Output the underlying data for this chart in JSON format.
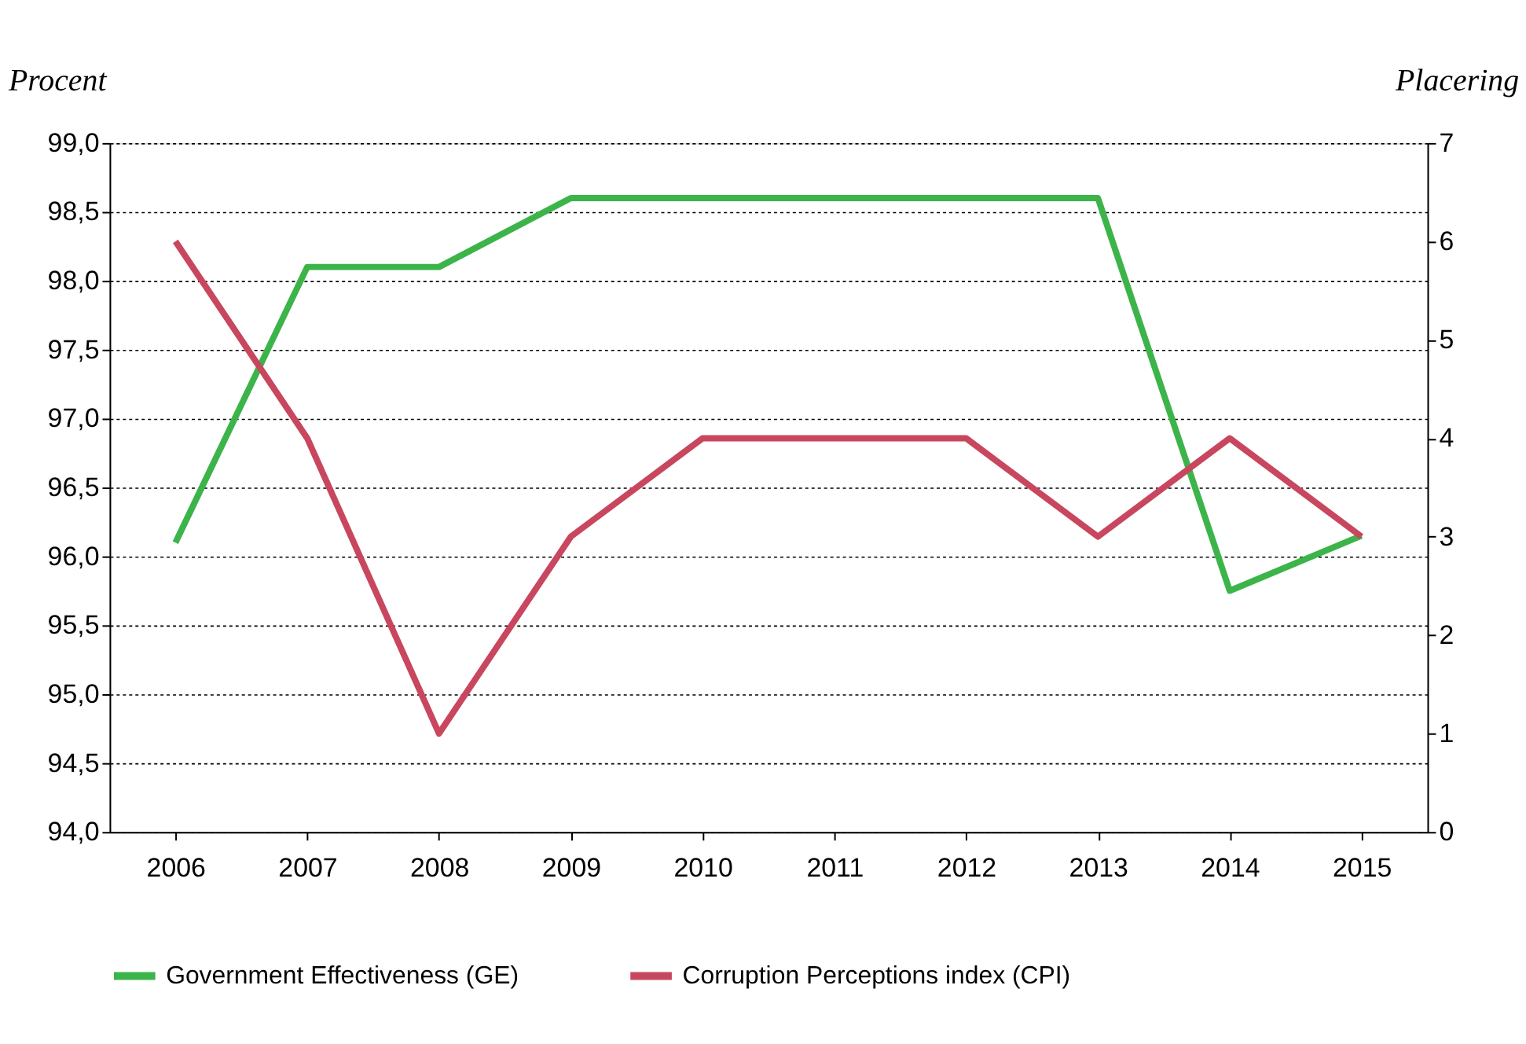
{
  "chart_data": {
    "type": "line",
    "ylabel": "Procent",
    "y2label": "Placering",
    "categories": [
      "2006",
      "2007",
      "2008",
      "2009",
      "2010",
      "2011",
      "2012",
      "2013",
      "2014",
      "2015"
    ],
    "series": [
      {
        "name": "Government Effectiveness (GE)",
        "color": "#3cb44a",
        "values": [
          96.1,
          98.1,
          98.1,
          98.6,
          98.6,
          98.6,
          98.6,
          98.6,
          95.75,
          96.15
        ]
      },
      {
        "name": "Corruption Perceptions index (CPI)",
        "color": "#c8475e",
        "axis": "y2",
        "values": [
          6,
          4,
          1,
          3,
          4,
          4,
          4,
          3,
          4,
          3
        ]
      }
    ],
    "ylim": [
      94,
      99
    ],
    "yticks": [
      {
        "value": 94,
        "label": "94,0"
      },
      {
        "value": 94.5,
        "label": "94,5"
      },
      {
        "value": 95,
        "label": "95,0"
      },
      {
        "value": 95.5,
        "label": "95,5"
      },
      {
        "value": 96,
        "label": "96,0"
      },
      {
        "value": 96.5,
        "label": "96,5"
      },
      {
        "value": 97,
        "label": "97,0"
      },
      {
        "value": 97.5,
        "label": "97,5"
      },
      {
        "value": 98,
        "label": "98,0"
      },
      {
        "value": 98.5,
        "label": "98,5"
      },
      {
        "value": 99,
        "label": "99,0"
      }
    ],
    "y2lim": [
      0,
      7
    ],
    "y2ticks": [
      0,
      1,
      2,
      3,
      4,
      5,
      6,
      7
    ],
    "grid": "y",
    "legend": "bottom",
    "marker": "none",
    "line_style": "solid"
  }
}
